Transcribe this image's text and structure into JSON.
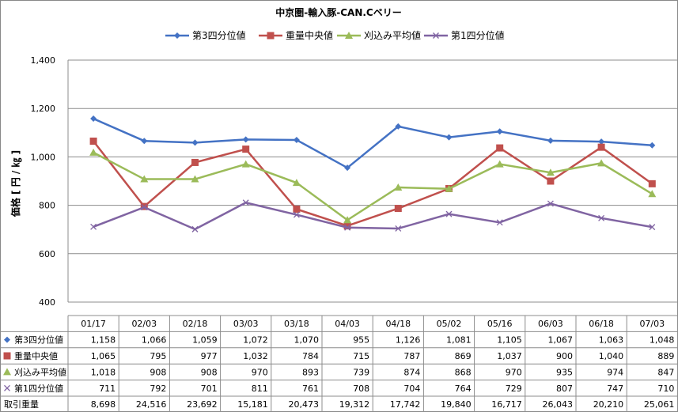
{
  "chart_data": {
    "type": "line",
    "title": "中京圏-輸入豚-CAN.Cベリー",
    "ylabel": "価格 [ 円 / ㎏ ]",
    "xlabel": "",
    "ylim": [
      400,
      1400
    ],
    "yticks": [
      "400",
      "600",
      "800",
      "1,000",
      "1,200",
      "1,400"
    ],
    "ytick_values": [
      400,
      600,
      800,
      1000,
      1200,
      1400
    ],
    "grid": true,
    "legend_position": "top",
    "categories": [
      "01/17",
      "02/03",
      "02/18",
      "03/03",
      "03/18",
      "04/03",
      "04/18",
      "05/02",
      "05/16",
      "06/03",
      "06/18",
      "07/03"
    ],
    "series": [
      {
        "name": "第3四分位値",
        "color": "#4472C4",
        "marker": "diamond",
        "values": [
          1158,
          1066,
          1059,
          1072,
          1070,
          955,
          1126,
          1081,
          1105,
          1067,
          1063,
          1048
        ]
      },
      {
        "name": "重量中央値",
        "color": "#C0504D",
        "marker": "square",
        "values": [
          1065,
          795,
          977,
          1032,
          784,
          715,
          787,
          869,
          1037,
          900,
          1040,
          889
        ]
      },
      {
        "name": "刈込み平均値",
        "color": "#9BBB59",
        "marker": "triangle",
        "values": [
          1018,
          908,
          908,
          970,
          893,
          739,
          874,
          868,
          970,
          935,
          974,
          847
        ]
      },
      {
        "name": "第1四分位値",
        "color": "#8064A2",
        "marker": "x",
        "values": [
          711,
          792,
          701,
          811,
          761,
          708,
          704,
          764,
          729,
          807,
          747,
          710
        ]
      }
    ],
    "table": {
      "rows": [
        {
          "label": "第3四分位値",
          "cells": [
            "1,158",
            "1,066",
            "1,059",
            "1,072",
            "1,070",
            "955",
            "1,126",
            "1,081",
            "1,105",
            "1,067",
            "1,063",
            "1,048"
          ]
        },
        {
          "label": "重量中央値",
          "cells": [
            "1,065",
            "795",
            "977",
            "1,032",
            "784",
            "715",
            "787",
            "869",
            "1,037",
            "900",
            "1,040",
            "889"
          ]
        },
        {
          "label": "刈込み平均値",
          "cells": [
            "1,018",
            "908",
            "908",
            "970",
            "893",
            "739",
            "874",
            "868",
            "970",
            "935",
            "974",
            "847"
          ]
        },
        {
          "label": "第1四分位値",
          "cells": [
            "711",
            "792",
            "701",
            "811",
            "761",
            "708",
            "704",
            "764",
            "729",
            "807",
            "747",
            "710"
          ]
        },
        {
          "label": "取引重量",
          "cells": [
            "8,698",
            "24,516",
            "23,692",
            "15,181",
            "20,473",
            "19,312",
            "17,742",
            "19,840",
            "16,717",
            "26,043",
            "20,210",
            "25,061"
          ]
        }
      ]
    }
  }
}
